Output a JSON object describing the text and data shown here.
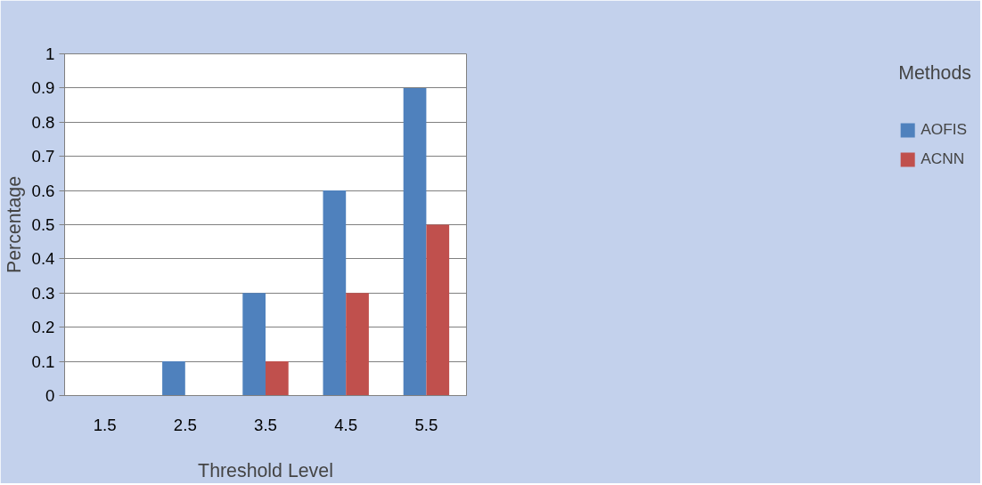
{
  "chart_data": {
    "type": "bar",
    "xlabel": "Threshold Level",
    "ylabel": "Percentage",
    "legend_title": "Methods",
    "categories": [
      "1.5",
      "2.5",
      "3.5",
      "4.5",
      "5.5"
    ],
    "series": [
      {
        "name": "AOFIS",
        "color": "#4f81bd",
        "values": [
          0,
          0.1,
          0.3,
          0.6,
          0.9
        ]
      },
      {
        "name": "ACNN",
        "color": "#c0504d",
        "values": [
          0,
          0,
          0.1,
          0.3,
          0.5
        ]
      }
    ],
    "ylim": [
      0,
      1
    ],
    "yticks": [
      0,
      0.1,
      0.2,
      0.3,
      0.4,
      0.5,
      0.6,
      0.7,
      0.8,
      0.9,
      1
    ],
    "grid": "y",
    "legend": "right"
  }
}
